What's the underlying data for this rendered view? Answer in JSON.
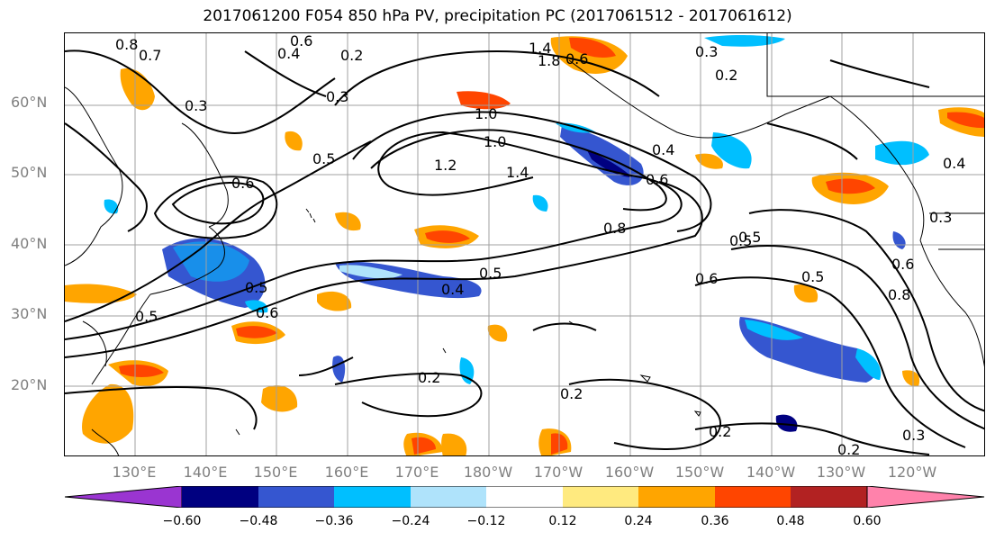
{
  "title": "2017061200 F054 850 hPa PV, precipitation PC (2017061512 - 2017061612)",
  "lat_labels": [
    "60°N",
    "50°N",
    "40°N",
    "30°N",
    "20°N"
  ],
  "lon_labels": [
    "130°E",
    "140°E",
    "150°E",
    "160°E",
    "170°E",
    "180°W",
    "170°W",
    "160°W",
    "150°W",
    "140°W",
    "130°W",
    "120°W"
  ],
  "contour_labels": [
    "0.8",
    "0.7",
    "0.6",
    "0.4",
    "0.2",
    "0.3",
    "0.3",
    "1.4",
    "1.8",
    "0.6",
    "0.3",
    "0.2",
    "1.0",
    "1.0",
    "1.2",
    "1.4",
    "0.4",
    "0.6",
    "0.5",
    "0.6",
    "0.8",
    "0.5",
    "0.6",
    "0.5",
    "0.5",
    "0.4",
    "0.5",
    "0.6",
    "0.5",
    "0.2",
    "0.2",
    "0.2",
    "0.2",
    "0.3",
    "0.3",
    "0.6",
    "0.8",
    "0.5",
    "0.4"
  ],
  "colorbar": {
    "colors": [
      "#9a35d1",
      "#000080",
      "#3556d0",
      "#00bfff",
      "#afe3fb",
      "#ffffff",
      "#ffea7f",
      "#ffa500",
      "#ff4500",
      "#b22222",
      "#ff82ab"
    ],
    "ticks": [
      "−0.60",
      "−0.48",
      "−0.36",
      "−0.24",
      "−0.12",
      "0.12",
      "0.24",
      "0.36",
      "0.48",
      "0.60"
    ]
  }
}
